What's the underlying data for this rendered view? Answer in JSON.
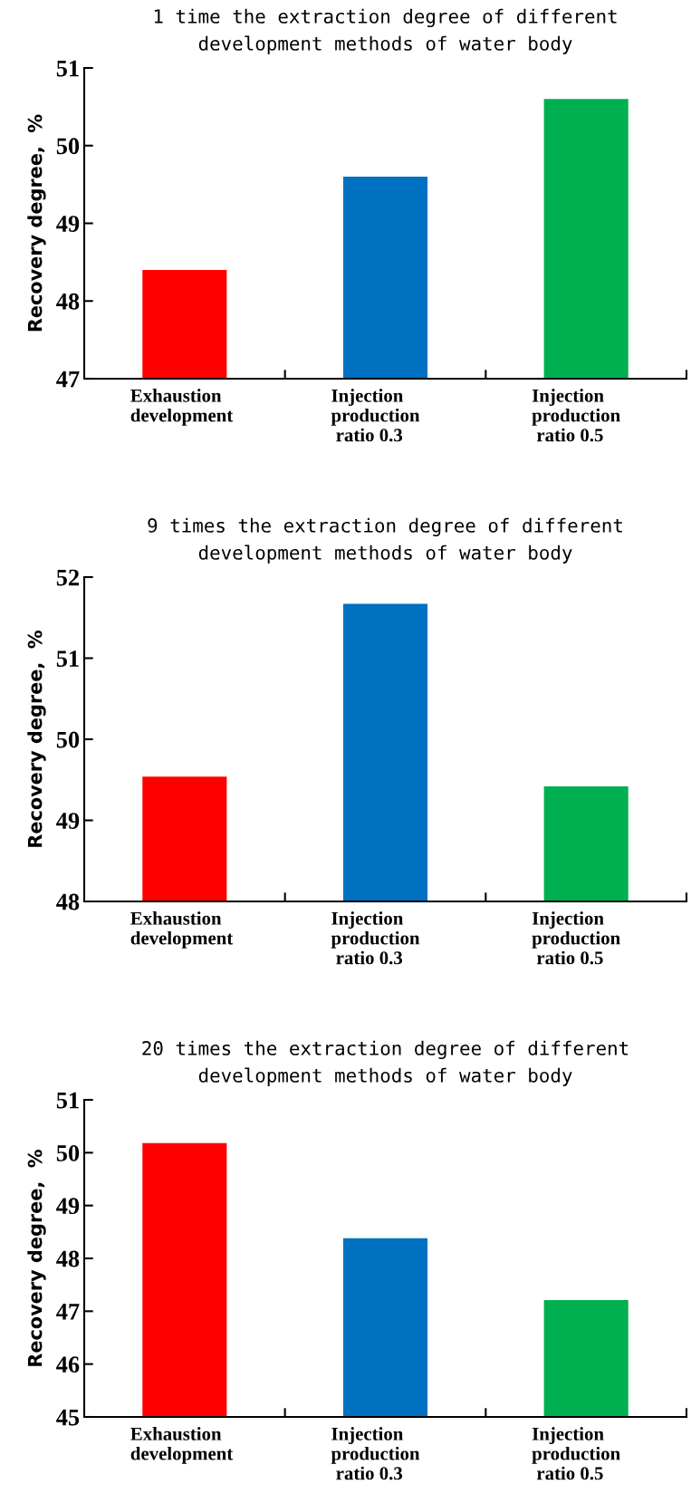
{
  "chart_data": [
    {
      "type": "bar",
      "title": "1 time the extraction degree of different\ndevelopment methods of water body",
      "ylabel": "Recovery degree,  %",
      "categories": [
        "Exhaustion\ndevelopment",
        "Injection\nproduction\n ratio 0.3",
        "Injection\nproduction\n ratio 0.5"
      ],
      "values": [
        48.4,
        49.6,
        50.6
      ],
      "colors": [
        "#ff0000",
        "#0070c0",
        "#00b050"
      ],
      "ylim": [
        47,
        51
      ],
      "yticks": [
        47,
        48,
        49,
        50,
        51
      ],
      "grid": false
    },
    {
      "type": "bar",
      "title": "9 times the extraction degree of different\ndevelopment methods of water body",
      "ylabel": "Recovery degree,  %",
      "categories": [
        "Exhaustion\ndevelopment",
        "Injection\nproduction\n ratio 0.3",
        "Injection\nproduction\n ratio 0.5"
      ],
      "values": [
        49.54,
        51.67,
        49.42
      ],
      "colors": [
        "#ff0000",
        "#0070c0",
        "#00b050"
      ],
      "ylim": [
        48,
        52
      ],
      "yticks": [
        48,
        49,
        50,
        51,
        52
      ],
      "grid": false
    },
    {
      "type": "bar",
      "title": "20 times the extraction degree of different\ndevelopment methods of water body",
      "ylabel": "Recovery degree,  %",
      "categories": [
        "Exhaustion\ndevelopment",
        "Injection\nproduction\n ratio 0.3",
        "Injection\nproduction\n ratio 0.5"
      ],
      "values": [
        50.18,
        48.38,
        47.21
      ],
      "colors": [
        "#ff0000",
        "#0070c0",
        "#00b050"
      ],
      "ylim": [
        45,
        51
      ],
      "yticks": [
        45,
        46,
        47,
        48,
        49,
        50,
        51
      ],
      "grid": false
    }
  ]
}
